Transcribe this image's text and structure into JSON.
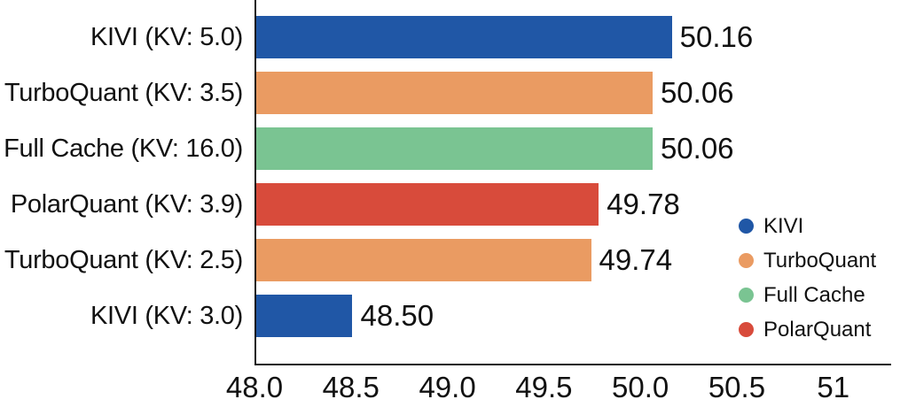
{
  "chart_data": {
    "type": "bar",
    "orientation": "horizontal",
    "title": "",
    "xlabel": "",
    "ylabel": "",
    "xlim": [
      48.0,
      51.3
    ],
    "grid": false,
    "legend_position": "lower right inside plot",
    "categories": [
      "KIVI (KV: 5.0)",
      "TurboQuant (KV: 3.5)",
      "Full Cache (KV: 16.0)",
      "PolarQuant (KV: 3.9)",
      "TurboQuant (KV: 2.5)",
      "KIVI (KV: 3.0)"
    ],
    "values": [
      50.16,
      50.06,
      50.06,
      49.78,
      49.74,
      48.5
    ],
    "bars": [
      {
        "label": "KIVI (KV: 5.0)",
        "value": 50.16,
        "value_label": "50.16",
        "series": "KIVI",
        "color": "#2057A6"
      },
      {
        "label": "TurboQuant (KV: 3.5)",
        "value": 50.06,
        "value_label": "50.06",
        "series": "TurboQuant",
        "color": "#EA9B62"
      },
      {
        "label": "Full Cache (KV: 16.0)",
        "value": 50.06,
        "value_label": "50.06",
        "series": "Full Cache",
        "color": "#7AC492"
      },
      {
        "label": "PolarQuant (KV: 3.9)",
        "value": 49.78,
        "value_label": "49.78",
        "series": "PolarQuant",
        "color": "#D84B3B"
      },
      {
        "label": "TurboQuant (KV: 2.5)",
        "value": 49.74,
        "value_label": "49.74",
        "series": "TurboQuant",
        "color": "#EA9B62"
      },
      {
        "label": "KIVI (KV: 3.0)",
        "value": 48.5,
        "value_label": "48.50",
        "series": "KIVI",
        "color": "#2057A6"
      }
    ],
    "x_ticks": [
      {
        "label": "48.0",
        "value": 48.0
      },
      {
        "label": "48.5",
        "value": 48.5
      },
      {
        "label": "49.0",
        "value": 49.0
      },
      {
        "label": "49.5",
        "value": 49.5
      },
      {
        "label": "50.0",
        "value": 50.0
      },
      {
        "label": "50.5",
        "value": 50.5
      },
      {
        "label": "51",
        "value": 51.0
      }
    ],
    "legend": [
      {
        "label": "KIVI",
        "color": "#2057A6"
      },
      {
        "label": "TurboQuant",
        "color": "#EA9B62"
      },
      {
        "label": "Full Cache",
        "color": "#7AC492"
      },
      {
        "label": "PolarQuant",
        "color": "#D84B3B"
      }
    ],
    "colors": {
      "axis": "#1a1a1a",
      "text": "#111111",
      "background": "#ffffff"
    }
  }
}
